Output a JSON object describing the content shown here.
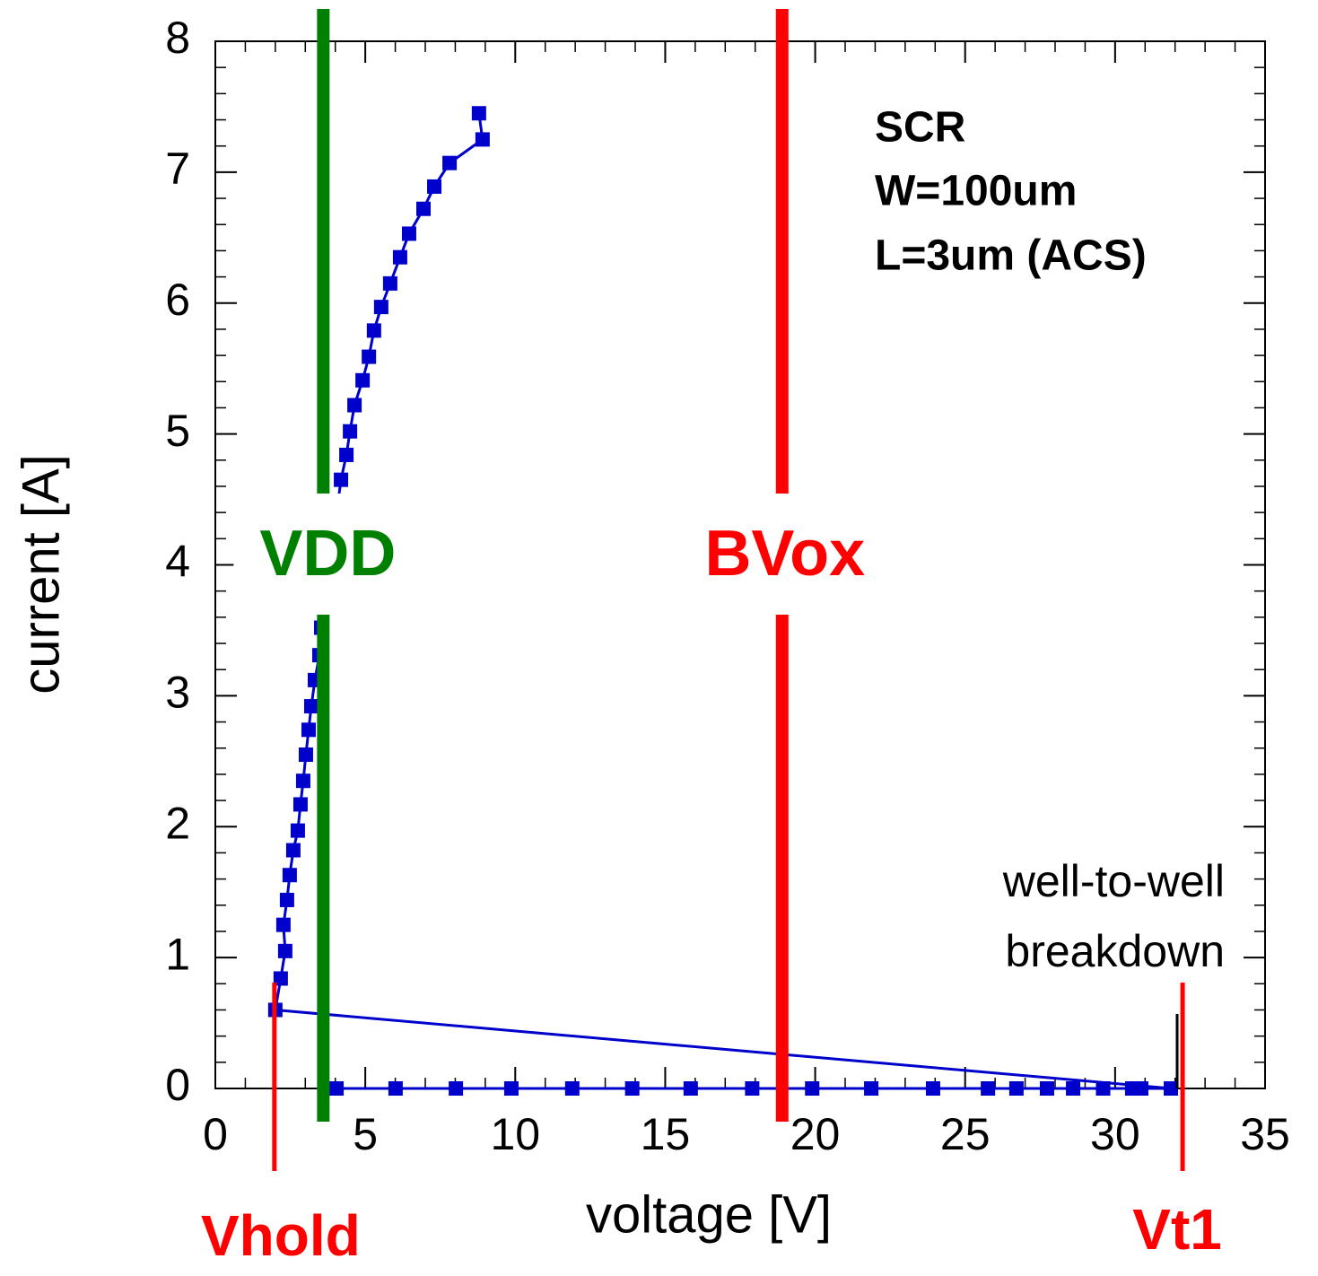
{
  "chart_data": {
    "type": "scatter",
    "x_label": "voltage [V]",
    "y_label": "current [A]",
    "xlim": [
      0,
      35
    ],
    "ylim": [
      0,
      8
    ],
    "xticks": [
      0,
      5,
      10,
      15,
      20,
      25,
      30,
      35
    ],
    "yticks": [
      0,
      1,
      2,
      3,
      4,
      5,
      6,
      7,
      8
    ],
    "series": [
      {
        "color": "#0000cc",
        "x": [
          4.04,
          6.01,
          8.02,
          9.87,
          11.9,
          13.9,
          15.85,
          17.9,
          19.9,
          21.87,
          23.93,
          25.76,
          26.71,
          27.73,
          28.6,
          29.6,
          30.57,
          30.87,
          31.86,
          2.0,
          2.18,
          2.33,
          2.27,
          2.39,
          2.48,
          2.6,
          2.75,
          2.84,
          2.93,
          3.02,
          3.11,
          3.2,
          3.32,
          3.47,
          3.53,
          4.19,
          4.37,
          4.49,
          4.64,
          4.91,
          5.12,
          5.29,
          5.53,
          5.83,
          6.16,
          6.46,
          6.94,
          7.3,
          7.81,
          8.91,
          8.79
        ],
        "values": [
          0,
          0,
          0,
          0,
          0,
          0,
          0,
          0,
          0,
          0,
          0,
          0,
          0,
          0,
          0,
          0,
          0,
          0,
          0,
          0.6,
          0.84,
          1.05,
          1.25,
          1.44,
          1.63,
          1.82,
          1.97,
          2.17,
          2.35,
          2.55,
          2.74,
          2.92,
          3.12,
          3.31,
          3.52,
          4.65,
          4.84,
          5.02,
          5.22,
          5.41,
          5.59,
          5.79,
          5.97,
          6.15,
          6.35,
          6.53,
          6.72,
          6.89,
          7.07,
          7.25,
          7.45
        ]
      }
    ],
    "annotations": [
      {
        "text": "VDD",
        "x": 3.6,
        "color": "#008000"
      },
      {
        "text": "BVox",
        "x": 18.9,
        "color": "#ff0000"
      },
      {
        "text": "Vhold",
        "x": 1.97,
        "color": "#ff0000"
      },
      {
        "text": "Vt1",
        "x": 32.25,
        "color": "#ff0000"
      }
    ],
    "notes": [
      "SCR",
      "W=100um",
      "L=3um (ACS)"
    ],
    "breakdown_note": [
      "well-to-well",
      "breakdown"
    ]
  }
}
